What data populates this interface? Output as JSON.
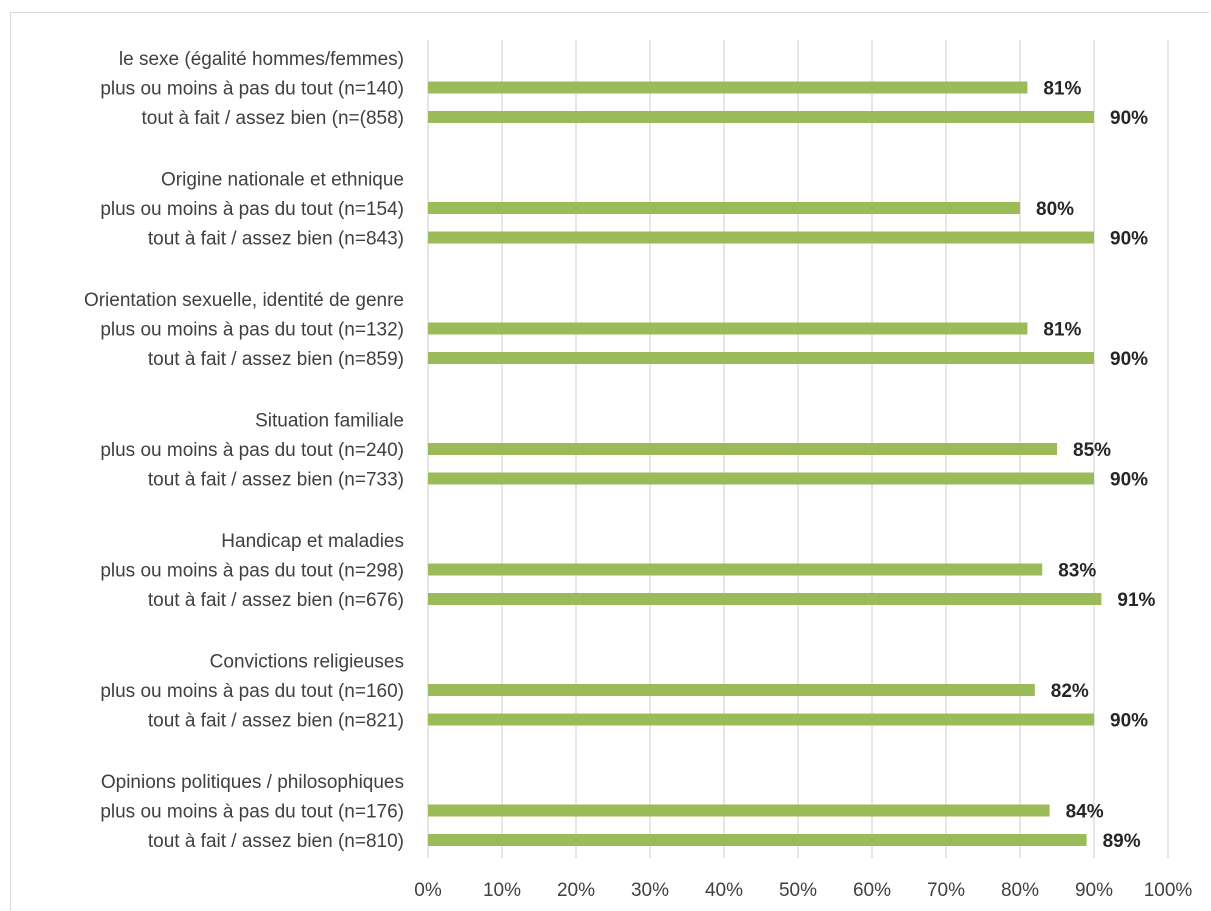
{
  "colors": {
    "bar": "#9bbb59",
    "grid": "#d9d9d9",
    "text": "#404040"
  },
  "chart_data": {
    "type": "bar",
    "orientation": "horizontal",
    "xlim": [
      0,
      100
    ],
    "x_unit": "%",
    "grid": true,
    "x_ticks": [
      "0%",
      "10%",
      "20%",
      "30%",
      "40%",
      "50%",
      "60%",
      "70%",
      "80%",
      "90%",
      "100%"
    ],
    "groups": [
      {
        "title": "le sexe (égalité hommes/femmes)",
        "bars": [
          {
            "label": "plus ou moins à pas du tout (n=140)",
            "value": 81,
            "value_label": "81%"
          },
          {
            "label": "tout à fait / assez bien (n=(858)",
            "value": 90,
            "value_label": "90%"
          }
        ]
      },
      {
        "title": "Origine nationale et ethnique",
        "bars": [
          {
            "label": "plus ou moins à pas du tout (n=154)",
            "value": 80,
            "value_label": "80%"
          },
          {
            "label": "tout à fait / assez bien (n=843)",
            "value": 90,
            "value_label": "90%"
          }
        ]
      },
      {
        "title": "Orientation sexuelle, identité de genre",
        "bars": [
          {
            "label": "plus ou moins à pas du tout (n=132)",
            "value": 81,
            "value_label": "81%"
          },
          {
            "label": "tout à fait / assez bien (n=859)",
            "value": 90,
            "value_label": "90%"
          }
        ]
      },
      {
        "title": "Situation familiale",
        "bars": [
          {
            "label": "plus ou moins à pas du tout (n=240)",
            "value": 85,
            "value_label": "85%"
          },
          {
            "label": "tout à fait / assez bien (n=733)",
            "value": 90,
            "value_label": "90%"
          }
        ]
      },
      {
        "title": "Handicap et maladies",
        "bars": [
          {
            "label": "plus ou moins à pas du tout (n=298)",
            "value": 83,
            "value_label": "83%"
          },
          {
            "label": "tout à fait / assez bien (n=676)",
            "value": 91,
            "value_label": "91%"
          }
        ]
      },
      {
        "title": "Convictions religieuses",
        "bars": [
          {
            "label": "plus ou moins à pas du tout (n=160)",
            "value": 82,
            "value_label": "82%"
          },
          {
            "label": "tout à fait / assez bien (n=821)",
            "value": 90,
            "value_label": "90%"
          }
        ]
      },
      {
        "title": "Opinions politiques / philosophiques",
        "bars": [
          {
            "label": "plus ou moins à pas du tout (n=176)",
            "value": 84,
            "value_label": "84%"
          },
          {
            "label": "tout à fait / assez bien (n=810)",
            "value": 89,
            "value_label": "89%"
          }
        ]
      }
    ]
  }
}
